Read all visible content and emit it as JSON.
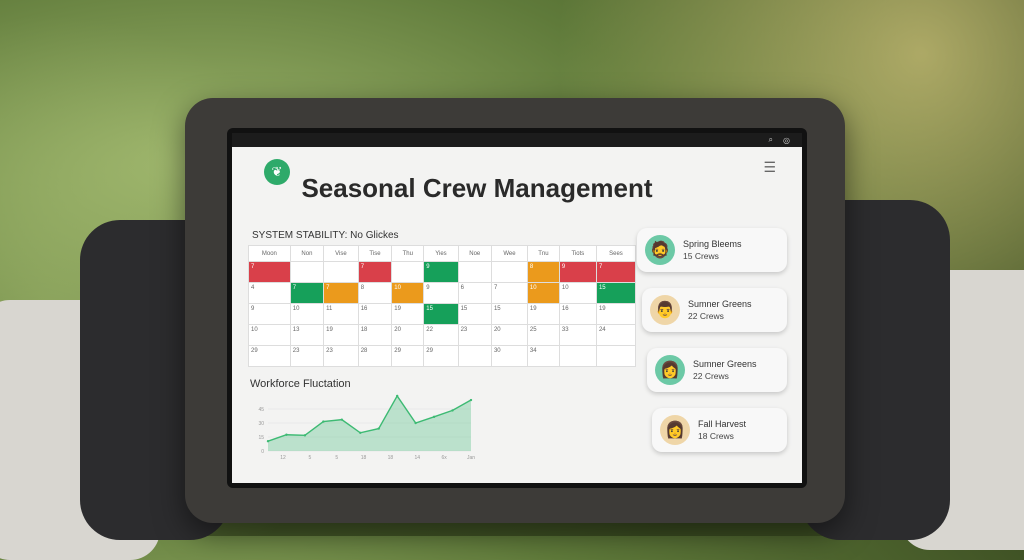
{
  "app": {
    "title": "Seasonal Crew Management",
    "logo_icon": "leaf-icon",
    "menu_icon": "hamburger-icon",
    "status_icons": [
      "search-icon",
      "settings-icon"
    ]
  },
  "calendar": {
    "title": "SYSTEM STABILITY: No Glickes",
    "headers": [
      "Moon",
      "Non",
      "Vise",
      "Tise",
      "Thu",
      "Yies",
      "Noe",
      "Wee",
      "Tnu",
      "Tiots",
      "Sees"
    ],
    "rows": [
      [
        {
          "v": "7",
          "s": "red"
        },
        {
          "v": ""
        },
        {
          "v": ""
        },
        {
          "v": "7",
          "s": "red"
        },
        {
          "v": ""
        },
        {
          "v": "9",
          "s": "green"
        },
        {
          "v": ""
        },
        {
          "v": ""
        },
        {
          "v": "8",
          "s": "orange"
        },
        {
          "v": "9",
          "s": "red"
        },
        {
          "v": "7",
          "s": "red"
        }
      ],
      [
        {
          "v": "4"
        },
        {
          "v": "7",
          "s": "green"
        },
        {
          "v": "7",
          "s": "orange"
        },
        {
          "v": "8"
        },
        {
          "v": "10",
          "s": "orange"
        },
        {
          "v": "9"
        },
        {
          "v": "6"
        },
        {
          "v": "7"
        },
        {
          "v": "10",
          "s": "orange"
        },
        {
          "v": "10"
        },
        {
          "v": "15",
          "s": "green"
        }
      ],
      [
        {
          "v": "9"
        },
        {
          "v": "10"
        },
        {
          "v": "11"
        },
        {
          "v": "16"
        },
        {
          "v": "19"
        },
        {
          "v": "15",
          "s": "green"
        },
        {
          "v": "15"
        },
        {
          "v": "15"
        },
        {
          "v": "19"
        },
        {
          "v": "16"
        },
        {
          "v": "19"
        }
      ],
      [
        {
          "v": "10"
        },
        {
          "v": "13"
        },
        {
          "v": "19"
        },
        {
          "v": "18"
        },
        {
          "v": "20"
        },
        {
          "v": "22"
        },
        {
          "v": "23"
        },
        {
          "v": "20"
        },
        {
          "v": "25"
        },
        {
          "v": "33"
        },
        {
          "v": "24"
        }
      ],
      [
        {
          "v": "29"
        },
        {
          "v": "23"
        },
        {
          "v": "23"
        },
        {
          "v": "28"
        },
        {
          "v": "29"
        },
        {
          "v": "29"
        },
        {
          "v": ""
        },
        {
          "v": "30"
        },
        {
          "v": "34"
        },
        {
          "v": ""
        },
        {
          "v": ""
        }
      ]
    ],
    "colors": {
      "red": "#d9404a",
      "green": "#16a05a",
      "orange": "#eb9a1c"
    }
  },
  "chart_data": {
    "type": "area",
    "title": "Workforce Fluctation",
    "xlabel": "",
    "ylabel": "",
    "x": [
      0,
      1,
      2,
      3,
      4,
      5,
      6,
      7,
      8,
      9,
      10,
      11
    ],
    "values": [
      10.5,
      17.4,
      16.8,
      31.5,
      33.6,
      19.5,
      24,
      59,
      30,
      36.6,
      43.5,
      54.6
    ],
    "xticks": [
      "12",
      "5",
      "5",
      "18",
      "18",
      "14",
      "6x",
      "Jan"
    ],
    "yticks": [
      "0",
      "15",
      "30",
      "45"
    ],
    "ylim": [
      0,
      60
    ],
    "grid": true,
    "color": "#3dba73"
  },
  "crews": [
    {
      "name": "Spring Bleems",
      "count": "15 Crews",
      "avatar_bg": "#6cc9a6"
    },
    {
      "name": "Sumner Greens",
      "count": "22 Crews",
      "avatar_bg": "#efd6a8"
    },
    {
      "name": "Sumner Greens",
      "count": "22 Crews",
      "avatar_bg": "#6cc9a6"
    },
    {
      "name": "Fall Harvest",
      "count": "18 Crews",
      "avatar_bg": "#efd6a8"
    }
  ]
}
